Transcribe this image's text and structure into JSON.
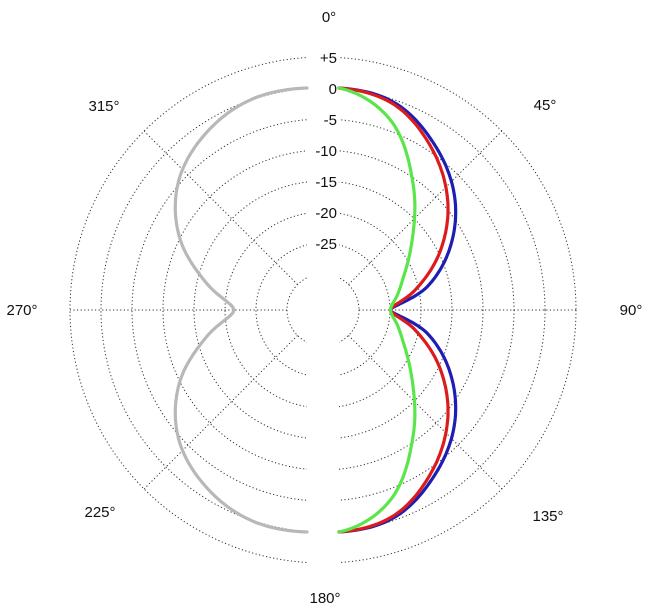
{
  "chart_data": {
    "type": "line",
    "subtype": "polar",
    "title": "",
    "radial_axis": {
      "unit": "dB",
      "min": -30,
      "max": 5,
      "ticks": [
        5,
        0,
        -5,
        -10,
        -15,
        -20,
        -25
      ],
      "tick_labels": [
        "+5",
        "0",
        "-5",
        "-10",
        "-15",
        "-20",
        "-25"
      ],
      "grid": "dotted"
    },
    "angular_axis": {
      "direction": "clockwise",
      "zero_at": "top",
      "spoke_step_deg": 45,
      "labels": [
        "0°",
        "45°",
        "90°",
        "135°",
        "180°",
        "225°",
        "270°",
        "315°"
      ]
    },
    "legend": "none",
    "series": [
      {
        "color": "#1e1eb4",
        "side": "right",
        "angles_deg": [
          0,
          15,
          30,
          45,
          60,
          75,
          90,
          105,
          120,
          135,
          150,
          165,
          180
        ],
        "values": [
          0,
          -1.2,
          -5,
          -9.5,
          -15,
          -21,
          -27.5,
          -21,
          -15,
          -9.5,
          -5,
          -1.2,
          0
        ]
      },
      {
        "color": "#dc1c1c",
        "side": "right",
        "angles_deg": [
          0,
          15,
          30,
          45,
          60,
          75,
          90,
          105,
          120,
          135,
          150,
          165,
          180
        ],
        "values": [
          0,
          -1.5,
          -5.8,
          -11,
          -17,
          -23,
          -27.5,
          -23,
          -17,
          -11,
          -5.8,
          -1.5,
          0
        ]
      },
      {
        "color": "#5ae64a",
        "side": "right",
        "angles_deg": [
          0,
          15,
          30,
          45,
          60,
          75,
          90,
          105,
          120,
          135,
          150,
          165,
          180
        ],
        "values": [
          0,
          -4,
          -12,
          -19,
          -23.5,
          -26,
          -27.5,
          -26,
          -23.5,
          -19,
          -12,
          -4,
          0
        ]
      },
      {
        "color": "#b8b8b8",
        "side": "left",
        "angles_deg": [
          180,
          195,
          210,
          225,
          240,
          255,
          270,
          285,
          300,
          315,
          330,
          345,
          360
        ],
        "values": [
          0,
          -0.7,
          -3,
          -6.5,
          -12,
          -19,
          -24,
          -19,
          -12,
          -6.5,
          -3,
          -0.7,
          0
        ]
      }
    ]
  }
}
